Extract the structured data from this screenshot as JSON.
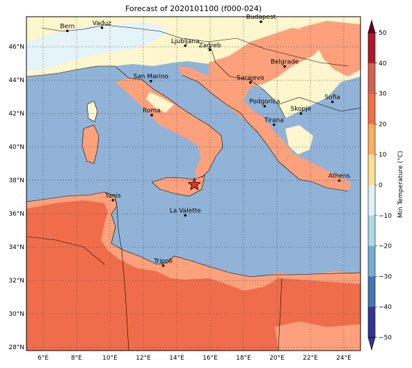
{
  "map": {
    "title": "Forecast of 2020101100 (f000-024)",
    "lon_ticks": [
      "6°E",
      "8°E",
      "10°E",
      "12°E",
      "14°E",
      "16°E",
      "18°E",
      "20°E",
      "22°E",
      "24°E"
    ],
    "lat_ticks": [
      "46°N",
      "44°N",
      "42°N",
      "40°N",
      "38°N",
      "36°N",
      "34°N",
      "32°N",
      "30°N",
      "28°N"
    ],
    "cities": [
      {
        "name": "Bern",
        "lon": 7.45,
        "lat": 46.95
      },
      {
        "name": "Vaduz",
        "lon": 9.52,
        "lat": 47.14
      },
      {
        "name": "Budapest",
        "lon": 19.04,
        "lat": 47.5
      },
      {
        "name": "Ljubljana",
        "lon": 14.51,
        "lat": 46.06
      },
      {
        "name": "Zagreb",
        "lon": 15.98,
        "lat": 45.81
      },
      {
        "name": "Belgrade",
        "lon": 20.46,
        "lat": 44.82
      },
      {
        "name": "San Marino",
        "lon": 12.45,
        "lat": 43.94
      },
      {
        "name": "Sarajevo",
        "lon": 18.41,
        "lat": 43.86
      },
      {
        "name": "Sofia",
        "lon": 23.32,
        "lat": 42.7
      },
      {
        "name": "Podgorica",
        "lon": 19.26,
        "lat": 42.44
      },
      {
        "name": "Skopje",
        "lon": 21.43,
        "lat": 42.0
      },
      {
        "name": "Roma",
        "lon": 12.5,
        "lat": 41.9
      },
      {
        "name": "Tirana",
        "lon": 19.82,
        "lat": 41.33
      },
      {
        "name": "Athens",
        "lon": 23.73,
        "lat": 37.98
      },
      {
        "name": "Tunis",
        "lon": 10.18,
        "lat": 36.81
      },
      {
        "name": "La Valette",
        "lon": 14.51,
        "lat": 35.9
      },
      {
        "name": "Tripoli",
        "lon": 13.19,
        "lat": 32.89
      }
    ],
    "marker": {
      "symbol": "red-star",
      "lon": 15.05,
      "lat": 37.75
    }
  },
  "colorbar": {
    "label": "Min Temperature (°C)",
    "ticks": [
      "50",
      "40",
      "30",
      "20",
      "10",
      "0",
      "−10",
      "−20",
      "−30",
      "−40",
      "−50"
    ],
    "colors": [
      "#67001f",
      "#b2182b",
      "#d6604d",
      "#f46d43",
      "#fdae61",
      "#fee090",
      "#e0f3f8",
      "#abd9e9",
      "#74add1",
      "#4575b4",
      "#313695"
    ]
  }
}
